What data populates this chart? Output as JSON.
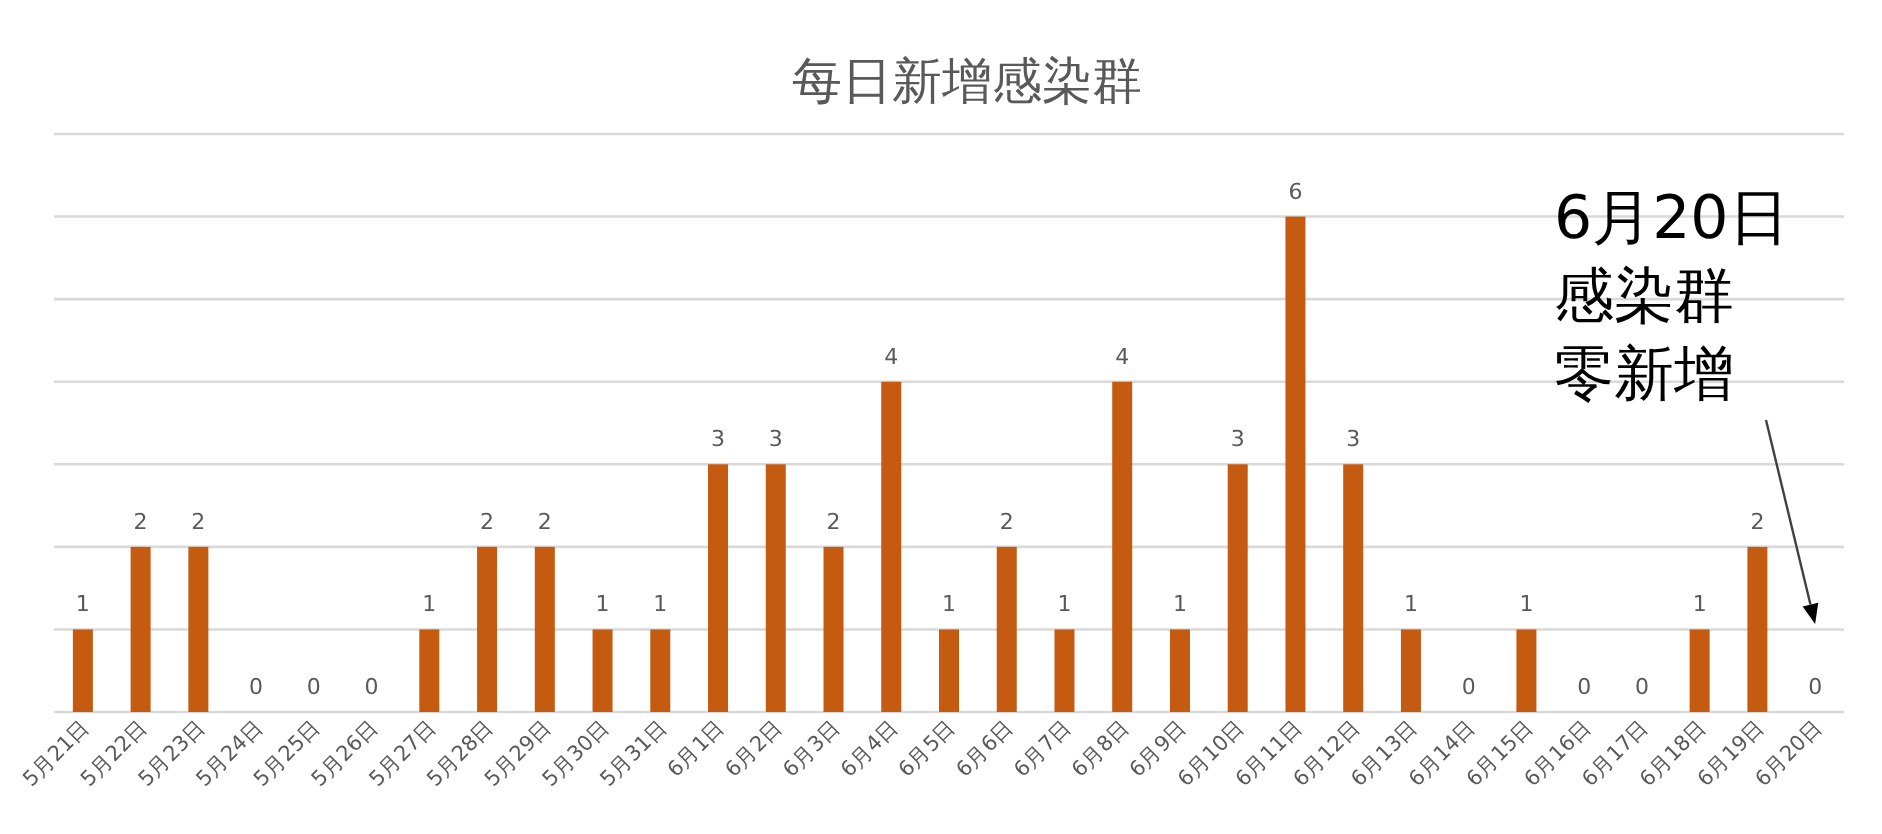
{
  "chart_data": {
    "type": "bar",
    "title": "每日新增感染群",
    "categories": [
      "5月21日",
      "5月22日",
      "5月23日",
      "5月24日",
      "5月25日",
      "5月26日",
      "5月27日",
      "5月28日",
      "5月29日",
      "5月30日",
      "5月31日",
      "6月1日",
      "6月2日",
      "6月3日",
      "6月4日",
      "6月5日",
      "6月6日",
      "6月7日",
      "6月8日",
      "6月9日",
      "6月10日",
      "6月11日",
      "6月12日",
      "6月13日",
      "6月14日",
      "6月15日",
      "6月16日",
      "6月17日",
      "6月18日",
      "6月19日",
      "6月20日"
    ],
    "values": [
      1,
      2,
      2,
      0,
      0,
      0,
      1,
      2,
      2,
      1,
      1,
      3,
      3,
      2,
      4,
      1,
      2,
      1,
      4,
      1,
      3,
      6,
      3,
      1,
      0,
      1,
      0,
      0,
      1,
      2,
      0
    ],
    "color": "#c55a11",
    "ylim": [
      0,
      7
    ],
    "yticks": [
      {
        "value": 0,
        "label": null
      },
      {
        "value": 1,
        "label": null
      },
      {
        "value": 2,
        "label": null
      },
      {
        "value": 3,
        "label": null
      },
      {
        "value": 4,
        "label": null
      },
      {
        "value": 5,
        "label": null
      },
      {
        "value": 6,
        "label": null
      },
      {
        "value": 7,
        "label": null
      }
    ],
    "grid": "y",
    "tick_labels": "x",
    "data_labels": true,
    "annotations": [
      "6月20日感染群零新增"
    ]
  }
}
